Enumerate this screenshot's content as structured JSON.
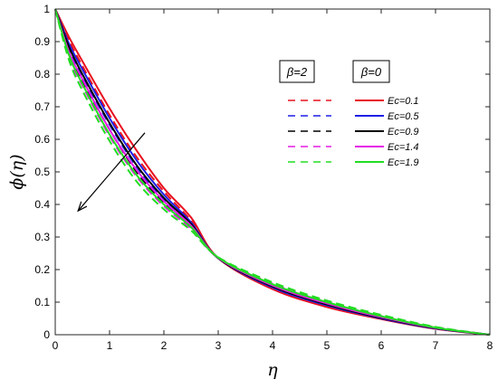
{
  "chart_data": {
    "type": "line",
    "xlabel": "η",
    "ylabel": "ϕ(η)",
    "xlim": [
      0,
      8
    ],
    "ylim": [
      0,
      1
    ],
    "xticks": [
      "0",
      "1",
      "2",
      "3",
      "4",
      "5",
      "6",
      "7",
      "8"
    ],
    "yticks": [
      "0",
      "0.1",
      "0.2",
      "0.3",
      "0.4",
      "0.5",
      "0.6",
      "0.7",
      "0.8",
      "0.9",
      "1"
    ],
    "grid": false,
    "legend_headers": {
      "dashed": "β=2",
      "solid": "β=0"
    },
    "legend_labels": [
      "Ec=0.1",
      "Ec=0.5",
      "Ec=0.9",
      "Ec=1.4",
      "Ec=1.9"
    ],
    "colors": [
      "#e8101e",
      "#1f1fe6",
      "#000000",
      "#e61ae6",
      "#22dd22"
    ],
    "x": [
      0,
      0.25,
      0.5,
      1,
      1.5,
      2,
      2.5,
      3,
      4,
      5,
      6,
      7,
      8
    ],
    "series": [
      {
        "name": "Ec=0.1",
        "style": "solid",
        "color": "#e8101e",
        "values": [
          1,
          0.915,
          0.84,
          0.695,
          0.565,
          0.45,
          0.36,
          0.235,
          0.14,
          0.085,
          0.048,
          0.018,
          0
        ]
      },
      {
        "name": "Ec=0.5",
        "style": "solid",
        "color": "#1f1fe6",
        "values": [
          1,
          0.895,
          0.815,
          0.665,
          0.535,
          0.43,
          0.345,
          0.235,
          0.145,
          0.09,
          0.05,
          0.019,
          0
        ]
      },
      {
        "name": "Ec=0.9",
        "style": "solid",
        "color": "#000000",
        "values": [
          1,
          0.885,
          0.8,
          0.65,
          0.52,
          0.42,
          0.34,
          0.235,
          0.148,
          0.093,
          0.052,
          0.02,
          0
        ]
      },
      {
        "name": "Ec=1.4",
        "style": "solid",
        "color": "#e61ae6",
        "values": [
          1,
          0.87,
          0.785,
          0.63,
          0.505,
          0.41,
          0.335,
          0.236,
          0.151,
          0.096,
          0.054,
          0.021,
          0
        ]
      },
      {
        "name": "Ec=1.9",
        "style": "solid",
        "color": "#22dd22",
        "values": [
          1,
          0.86,
          0.77,
          0.615,
          0.49,
          0.4,
          0.33,
          0.237,
          0.155,
          0.1,
          0.057,
          0.022,
          0
        ]
      },
      {
        "name": "Ec=0.1",
        "style": "dashed",
        "color": "#e8101e",
        "values": [
          1,
          0.905,
          0.825,
          0.675,
          0.545,
          0.44,
          0.35,
          0.235,
          0.143,
          0.09,
          0.05,
          0.019,
          0
        ]
      },
      {
        "name": "Ec=0.5",
        "style": "dashed",
        "color": "#1f1fe6",
        "values": [
          1,
          0.88,
          0.795,
          0.645,
          0.515,
          0.415,
          0.335,
          0.236,
          0.15,
          0.095,
          0.054,
          0.021,
          0
        ]
      },
      {
        "name": "Ec=0.9",
        "style": "dashed",
        "color": "#000000",
        "values": [
          1,
          0.87,
          0.78,
          0.63,
          0.5,
          0.405,
          0.33,
          0.236,
          0.153,
          0.098,
          0.056,
          0.022,
          0
        ]
      },
      {
        "name": "Ec=1.4",
        "style": "dashed",
        "color": "#e61ae6",
        "values": [
          1,
          0.855,
          0.765,
          0.61,
          0.485,
          0.395,
          0.325,
          0.237,
          0.157,
          0.101,
          0.058,
          0.023,
          0
        ]
      },
      {
        "name": "Ec=1.9",
        "style": "dashed",
        "color": "#22dd22",
        "values": [
          1,
          0.845,
          0.75,
          0.595,
          0.47,
          0.385,
          0.32,
          0.238,
          0.161,
          0.105,
          0.061,
          0.024,
          0
        ]
      }
    ],
    "annotations": [
      {
        "type": "arrow",
        "from": [
          1.65,
          0.62
        ],
        "to": [
          0.42,
          0.38
        ]
      }
    ]
  }
}
